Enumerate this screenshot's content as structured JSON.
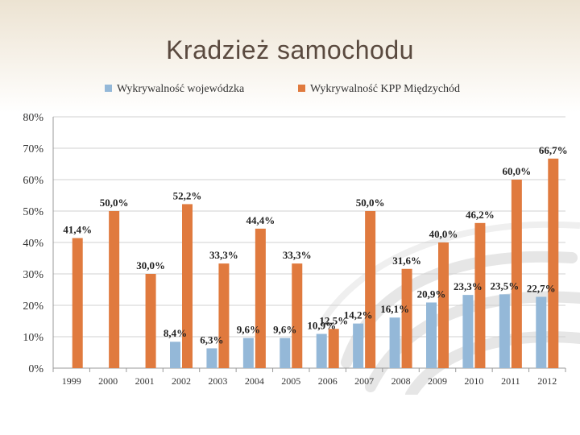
{
  "slide": {
    "title": "Kradzież samochodu"
  },
  "chart_data": {
    "type": "bar",
    "categories": [
      "1999",
      "2000",
      "2001",
      "2002",
      "2003",
      "2004",
      "2005",
      "2006",
      "2007",
      "2008",
      "2009",
      "2010",
      "2011",
      "2012"
    ],
    "series": [
      {
        "name": "Wykrywalność wojewódzka",
        "color": "#94b8d8",
        "values": [
          null,
          null,
          null,
          8.4,
          6.3,
          9.6,
          9.6,
          10.9,
          14.2,
          16.1,
          20.9,
          23.3,
          23.5,
          22.7
        ],
        "labels": [
          "",
          "",
          "",
          "8,4%",
          "6,3%",
          "9,6%",
          "9,6%",
          "10,9%",
          "14,2%",
          "16,1%",
          "20,9%",
          "23,3%",
          "23,5%",
          "22,7%"
        ]
      },
      {
        "name": "Wykrywalność KPP Międzychód",
        "color": "#e07a3e",
        "values": [
          41.4,
          50.0,
          30.0,
          52.2,
          33.3,
          44.4,
          33.3,
          12.5,
          50.0,
          31.6,
          40.0,
          46.2,
          60.0,
          66.7
        ],
        "labels": [
          "41,4%",
          "50,0%",
          "30,0%",
          "52,2%",
          "33,3%",
          "44,4%",
          "33,3%",
          "12,5%",
          "50,0%",
          "31,6%",
          "40,0%",
          "46,2%",
          "60,0%",
          "66,7%"
        ]
      }
    ],
    "ylim": [
      0,
      80
    ],
    "yticks": [
      0,
      10,
      20,
      30,
      40,
      50,
      60,
      70,
      80
    ],
    "ytick_labels": [
      "0%",
      "10%",
      "20%",
      "30%",
      "40%",
      "50%",
      "60%",
      "70%",
      "80%"
    ],
    "grid": true,
    "legend": "top"
  }
}
